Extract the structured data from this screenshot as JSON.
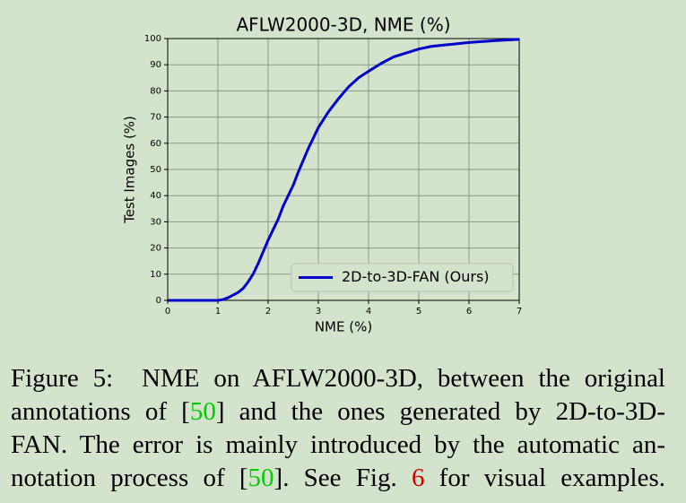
{
  "chart_data": {
    "type": "line",
    "title": "AFLW2000-3D, NME (%)",
    "x_label": "NME (%)",
    "y_label": "Test Images (%)",
    "x": [
      0,
      1,
      1.1,
      1.2,
      1.3,
      1.4,
      1.5,
      1.6,
      1.7,
      1.8,
      1.9,
      2,
      2.1,
      2.2,
      2.3,
      2.4,
      2.5,
      2.6,
      2.7,
      2.8,
      2.9,
      3,
      3.2,
      3.4,
      3.6,
      3.8,
      4,
      4.25,
      4.5,
      4.75,
      5,
      5.25,
      5.5,
      5.75,
      6,
      6.5,
      7
    ],
    "series": [
      {
        "name": "2D-to-3D-FAN (Ours)",
        "color": "#0000cc",
        "values": [
          0,
          0,
          0.3,
          1,
          2,
          3,
          4.5,
          7,
          10,
          14,
          18.5,
          23,
          27,
          31,
          36,
          40,
          44,
          49,
          53.5,
          58,
          62,
          66,
          72,
          77,
          81.5,
          85,
          87.5,
          90.5,
          93,
          94.5,
          96,
          97,
          97.5,
          98,
          98.5,
          99.2,
          99.7
        ]
      }
    ],
    "xlim": [
      0,
      7
    ],
    "xticks": [
      0,
      1,
      2,
      3,
      4,
      5,
      6,
      7
    ],
    "ylim": [
      0,
      100
    ],
    "yticks": [
      0,
      10,
      20,
      30,
      40,
      50,
      60,
      70,
      80,
      90,
      100
    ],
    "grid": true,
    "legend": "lower right"
  },
  "caption": {
    "lines": [
      [
        "Figure 5:  NME on AFLW2000-3D, between the original"
      ],
      [
        "annotations of [",
        "50",
        "] and the ones generated by 2D-to-3D-"
      ],
      [
        "FAN. The error is mainly introduced by the automatic an-"
      ],
      [
        "notation process of [",
        "50",
        "]. See Fig. ",
        "6",
        " for visual examples."
      ]
    ]
  }
}
